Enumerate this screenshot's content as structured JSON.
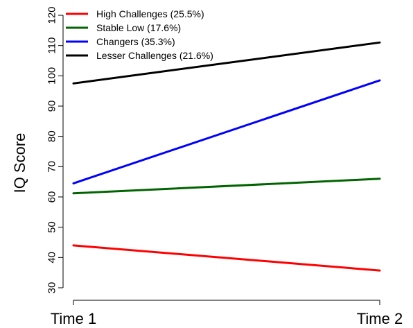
{
  "chart_data": {
    "type": "line",
    "title": "",
    "xlabel": "",
    "ylabel": "IQ Score",
    "categories": [
      "Time 1",
      "Time 2"
    ],
    "ylim": [
      30,
      120
    ],
    "yticks": [
      30,
      40,
      50,
      60,
      70,
      80,
      90,
      100,
      110,
      120
    ],
    "grid": false,
    "legend_position": "top-left",
    "series": [
      {
        "name": "High Challenges (25.5%)",
        "values": [
          44.0,
          35.7
        ],
        "color": "#ff0000"
      },
      {
        "name": "Stable Low (17.6%)",
        "values": [
          61.2,
          66.0
        ],
        "color": "#006400"
      },
      {
        "name": "Changers (35.3%)",
        "values": [
          64.5,
          98.5
        ],
        "color": "#0000ff"
      },
      {
        "name": "Lesser Challenges (21.6%)",
        "values": [
          97.5,
          111.0
        ],
        "color": "#000000"
      }
    ]
  }
}
